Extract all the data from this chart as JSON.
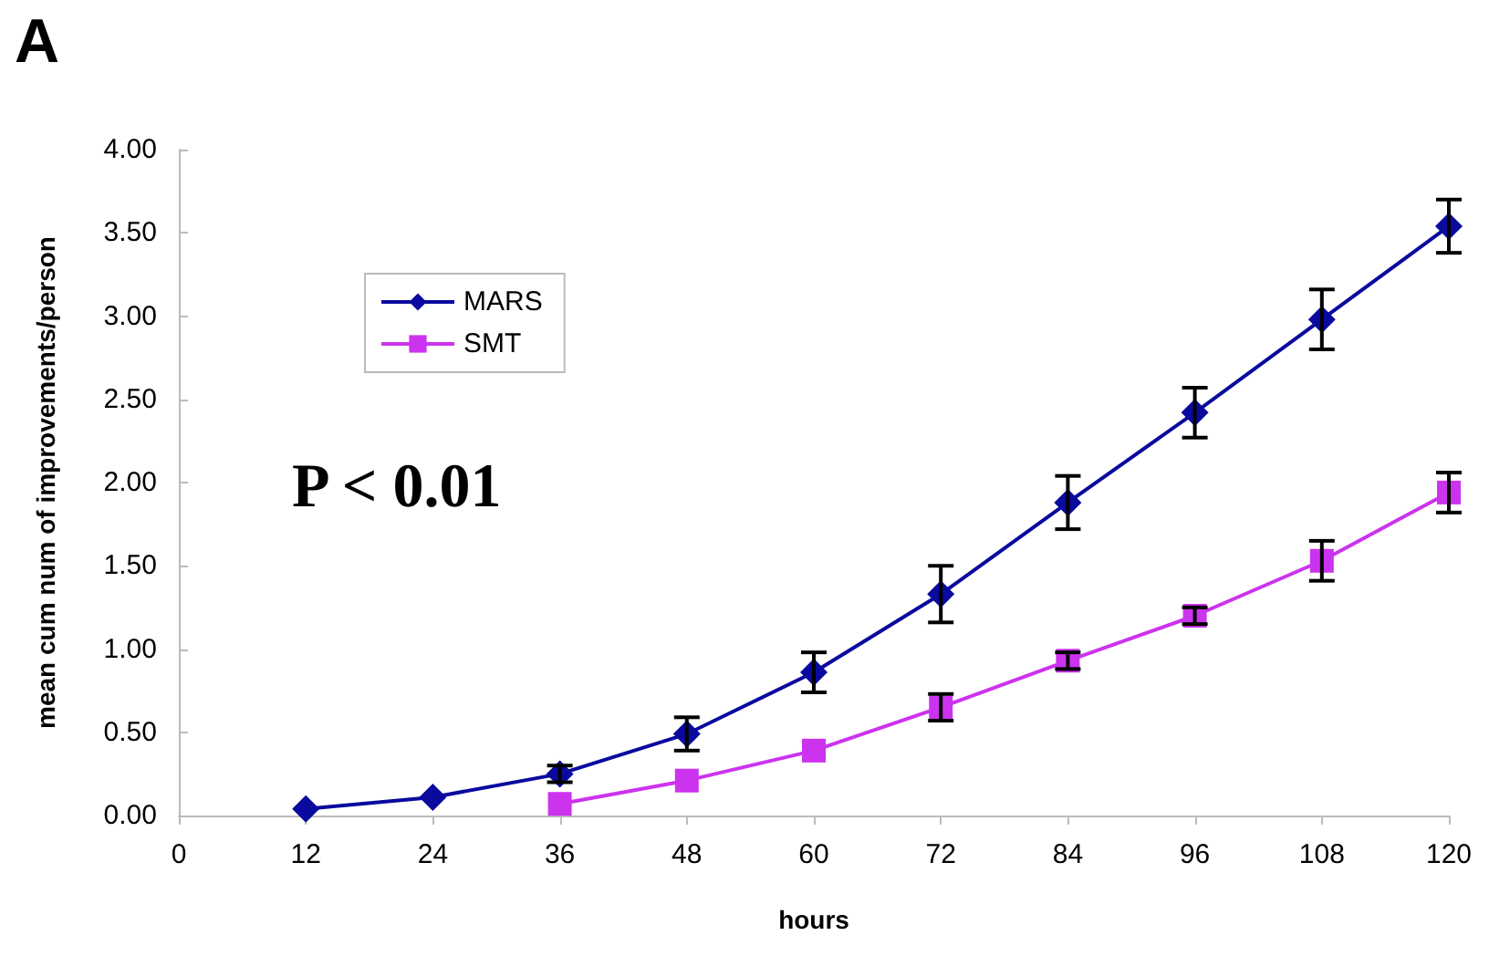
{
  "chart_data": {
    "type": "line",
    "xlabel": "hours",
    "ylabel": "mean cum num of improvements/person",
    "annotations": [
      "A",
      "P < 0.01"
    ],
    "xlim": [
      0,
      120
    ],
    "xticks": [
      0,
      12,
      24,
      36,
      48,
      60,
      72,
      84,
      96,
      108,
      120
    ],
    "ylim": [
      0,
      4
    ],
    "yticks": [
      {
        "value": 0,
        "label": "0.00"
      },
      {
        "value": 0.5,
        "label": "0.50"
      },
      {
        "value": 1,
        "label": "1.00"
      },
      {
        "value": 1.5,
        "label": "1.50"
      },
      {
        "value": 2,
        "label": "2.00"
      },
      {
        "value": 2.5,
        "label": "2.50"
      },
      {
        "value": 3,
        "label": "3.00"
      },
      {
        "value": 3.5,
        "label": "3.50"
      },
      {
        "value": 4,
        "label": "4.00"
      }
    ],
    "series": [
      {
        "name": "MARS",
        "color": "#0a0a9e",
        "marker": "diamond",
        "x": [
          12,
          24,
          36,
          48,
          60,
          72,
          84,
          96,
          108,
          120
        ],
        "values": [
          0.04,
          0.11,
          0.25,
          0.49,
          0.86,
          1.33,
          1.88,
          2.42,
          2.98,
          3.54
        ],
        "errors": [
          null,
          null,
          0.05,
          0.1,
          0.12,
          0.17,
          0.16,
          0.15,
          0.18,
          0.16
        ]
      },
      {
        "name": "SMT",
        "color": "#cc33ee",
        "marker": "square",
        "x": [
          36,
          48,
          60,
          72,
          84,
          96,
          108,
          120
        ],
        "values": [
          0.07,
          0.21,
          0.39,
          0.65,
          0.93,
          1.2,
          1.53,
          1.94
        ],
        "errors": [
          null,
          null,
          null,
          0.08,
          0.05,
          0.05,
          0.12,
          0.12
        ]
      }
    ],
    "legend": "top left",
    "grid": false,
    "line_style": "solid"
  }
}
